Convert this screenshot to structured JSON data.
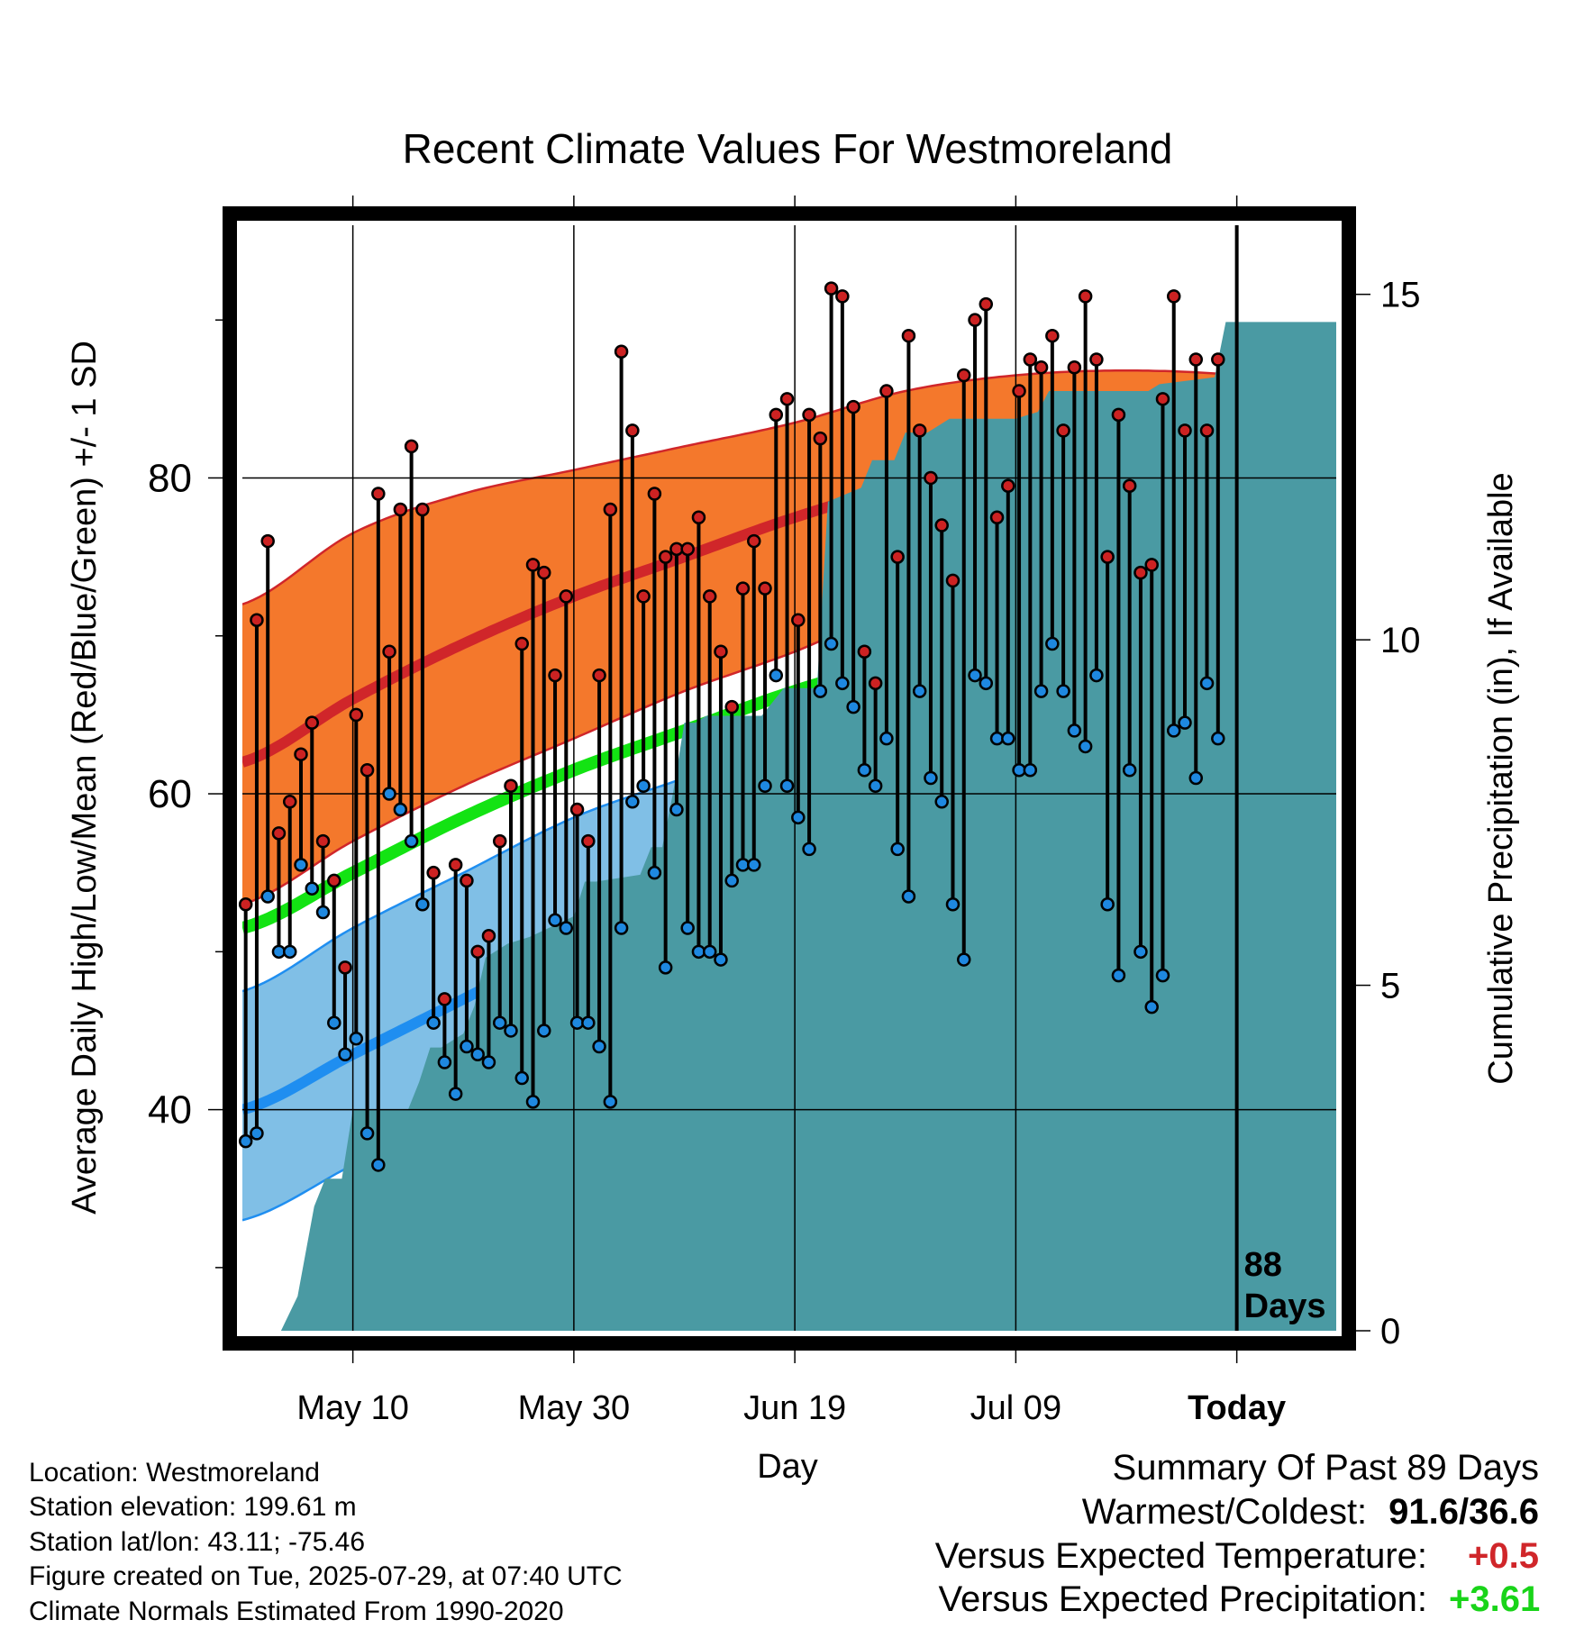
{
  "chart_data": {
    "type": "line",
    "title": "Recent Climate Values For Westmoreland",
    "xlabel": "Day",
    "ylabel": "Average Daily High/Low/Mean (Red/Blue/Green) +/- 1 SD",
    "y2label": "Cumulative Precipitation (in), If Available",
    "x_ticks": [
      "May 10",
      "May 30",
      "Jun 19",
      "Jul 09",
      "Today"
    ],
    "x_tick_days": [
      10,
      30,
      50,
      70,
      90
    ],
    "x_range_days": [
      0,
      99
    ],
    "ylim": [
      26,
      96
    ],
    "y_ticks": [
      40,
      60,
      80
    ],
    "y2lim": [
      0,
      16
    ],
    "y2_ticks": [
      0,
      5,
      10,
      15
    ],
    "today_label": "88\nDays",
    "colors": {
      "high_band": "#f4782c",
      "high_line": "#d0262a",
      "low_band": "#80bfe6",
      "low_line": "#1f8ef0",
      "mean_line": "#13e313",
      "precip": "#4a9aa3",
      "high_dot": "#cc2222",
      "low_dot": "#1e88e0"
    },
    "normals": {
      "days": [
        0,
        10,
        20,
        30,
        40,
        50,
        60,
        70,
        80,
        90,
        99
      ],
      "high_mean": [
        62.0,
        66.0,
        69.5,
        72.5,
        75.0,
        77.5,
        79.5,
        80.5,
        81.0,
        80.8,
        80.0
      ],
      "high_plus_sd": [
        72.0,
        76.5,
        79.0,
        80.5,
        82.0,
        83.5,
        85.5,
        86.5,
        86.8,
        86.5,
        85.5
      ],
      "high_minus_sd": [
        53.0,
        57.0,
        60.5,
        63.5,
        66.5,
        69.0,
        72.0,
        74.0,
        75.0,
        75.0,
        74.5
      ],
      "mean": [
        51.5,
        55.0,
        58.5,
        61.5,
        64.0,
        66.5,
        68.5,
        70.0,
        70.5,
        70.5,
        70.0
      ],
      "low_mean": [
        40.0,
        43.5,
        47.0,
        50.5,
        53.5,
        56.0,
        58.5,
        60.0,
        60.5,
        60.5,
        59.8
      ],
      "low_plus_sd": [
        47.5,
        51.5,
        55.0,
        58.5,
        61.0,
        63.5,
        65.5,
        66.5,
        66.8,
        66.5,
        65.8
      ],
      "low_minus_sd": [
        33.0,
        36.5,
        40.0,
        43.5,
        47.0,
        50.0,
        53.0,
        54.5,
        55.0,
        55.0,
        54.5
      ]
    },
    "series": [
      {
        "name": "High",
        "values": [
          53,
          71,
          76,
          57.5,
          59.5,
          62.5,
          64.5,
          57,
          54.5,
          49,
          65,
          61.5,
          79,
          69,
          78,
          82,
          78,
          55,
          47,
          55.5,
          54.5,
          50,
          51,
          57,
          60.5,
          69.5,
          74.5,
          74,
          67.5,
          72.5,
          59,
          57,
          67.5,
          78,
          88,
          83,
          72.5,
          79,
          75,
          75.5,
          75.5,
          77.5,
          72.5,
          69,
          65.5,
          73,
          76,
          73,
          84,
          85,
          71,
          84,
          82.5,
          92,
          91.5,
          84.5,
          69,
          67,
          85.5,
          75,
          89,
          83,
          80,
          77,
          73.5,
          86.5,
          90,
          91,
          77.5,
          79.5,
          85.5,
          87.5,
          87,
          89,
          83,
          87,
          91.5,
          87.5,
          75,
          84,
          79.5,
          74,
          74.5,
          85,
          91.5,
          83,
          87.5,
          83,
          87.5
        ]
      },
      {
        "name": "Low",
        "values": [
          38,
          38.5,
          53.5,
          50,
          50,
          55.5,
          54,
          52.5,
          45.5,
          43.5,
          44.5,
          38.5,
          36.5,
          60,
          59,
          57,
          53,
          45.5,
          43,
          41,
          44,
          43.5,
          43,
          45.5,
          45,
          42,
          40.5,
          45,
          52,
          51.5,
          45.5,
          45.5,
          44,
          40.5,
          51.5,
          59.5,
          60.5,
          55,
          49,
          59,
          51.5,
          50,
          50,
          49.5,
          54.5,
          55.5,
          55.5,
          60.5,
          67.5,
          60.5,
          58.5,
          56.5,
          66.5,
          69.5,
          67,
          65.5,
          61.5,
          60.5,
          63.5,
          56.5,
          53.5,
          66.5,
          61,
          59.5,
          53,
          49.5,
          67.5,
          67,
          63.5,
          63.5,
          61.5,
          61.5,
          66.5,
          69.5,
          66.5,
          64,
          63,
          67.5,
          53,
          48.5,
          61.5,
          50,
          46.5,
          48.5,
          64,
          64.5,
          61,
          67,
          63.5
        ]
      },
      {
        "name": "Cumulative Precipitation",
        "x": [
          0,
          3.5,
          5,
          6.5,
          7.5,
          9,
          10,
          12,
          15,
          16,
          17,
          18,
          20,
          21,
          22,
          24,
          26,
          30,
          31,
          32,
          36,
          37,
          38,
          39,
          40,
          41,
          42,
          43,
          47,
          48,
          49,
          52,
          53,
          56,
          57,
          59,
          60,
          62,
          64,
          65,
          70,
          72,
          73,
          82,
          83,
          88,
          89,
          90,
          99
        ],
        "values": [
          0,
          0,
          0.5,
          1.8,
          2.2,
          2.2,
          3.2,
          3.2,
          3.2,
          3.6,
          4.1,
          4.1,
          4.3,
          4.7,
          5.4,
          5.6,
          5.7,
          6.0,
          6.5,
          6.5,
          6.6,
          7.0,
          7.0,
          7.8,
          8.8,
          8.8,
          8.9,
          8.9,
          8.9,
          9.1,
          9.3,
          9.3,
          12.0,
          12.2,
          12.6,
          12.6,
          13.0,
          13.0,
          13.2,
          13.2,
          13.2,
          13.3,
          13.6,
          13.6,
          13.7,
          13.8,
          14.6,
          14.6,
          14.6
        ]
      }
    ]
  },
  "footer": {
    "location": "Location: Westmoreland",
    "elevation": "Station elevation: 199.61 m",
    "latlon": "Station lat/lon: 43.11; -75.46",
    "created": "Figure created on Tue, 2025-07-29, at 07:40 UTC",
    "normals": "Climate Normals Estimated From 1990-2020"
  },
  "summary": {
    "heading": "Summary Of Past 89 Days",
    "warmest_label": "Warmest/Coldest:",
    "warmest_value": "91.6/36.6",
    "temp_label": "Versus Expected Temperature:",
    "temp_value": "+0.5",
    "temp_color": "#d0262a",
    "precip_label": "Versus Expected Precipitation:",
    "precip_value": "+3.61",
    "precip_color": "#19d419"
  }
}
